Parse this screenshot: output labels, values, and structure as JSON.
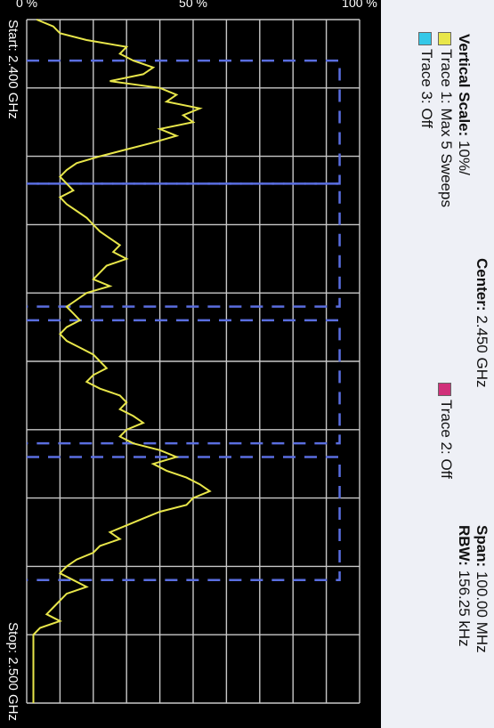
{
  "header": {
    "center_label": "Center:",
    "center_value": "2.450 GHz",
    "span_label": "Span:",
    "span_value": "100.00 MHz",
    "vscale_label": "Vertical Scale:",
    "vscale_value": "10%/",
    "rbw_label": "RBW:",
    "rbw_value": "156.25 kHz",
    "trace1_label": "Trace 1: Max 5 Sweeps",
    "trace2_label": "Trace 2: Off",
    "trace3_label": "Trace 3: Off"
  },
  "colors": {
    "trace1": "#e8e64a",
    "trace3": "#34c8e8",
    "trace2": "#d0307a",
    "grid": "#c8c8c8",
    "blue_dash": "#5a6ee0"
  },
  "chart_data": {
    "type": "line",
    "xlim": [
      2400,
      2500
    ],
    "ylim": [
      0,
      100
    ],
    "y_ticks": [
      "0 %",
      "50 %",
      "100 %"
    ],
    "x_start_label": "Start: 2.400 GHz",
    "x_stop_label": "Stop: 2.500 GHz",
    "grid": true,
    "series": [
      {
        "name": "Trace 1: Max 5 Sweeps",
        "x": [
          2400,
          2401,
          2402,
          2403,
          2404,
          2405,
          2406,
          2407,
          2408,
          2409,
          2410,
          2411,
          2412,
          2413,
          2414,
          2415,
          2416,
          2417,
          2418,
          2419,
          2420,
          2421,
          2422,
          2423,
          2424,
          2425,
          2426,
          2427,
          2428,
          2429,
          2430,
          2431,
          2432,
          2433,
          2434,
          2435,
          2436,
          2437,
          2438,
          2439,
          2440,
          2441,
          2442,
          2443,
          2444,
          2445,
          2446,
          2447,
          2448,
          2449,
          2450,
          2451,
          2452,
          2453,
          2454,
          2455,
          2456,
          2457,
          2458,
          2459,
          2460,
          2461,
          2462,
          2463,
          2464,
          2465,
          2466,
          2467,
          2468,
          2469,
          2470,
          2471,
          2472,
          2473,
          2474,
          2475,
          2476,
          2477,
          2478,
          2479,
          2480,
          2481,
          2482,
          2483,
          2484,
          2485,
          2486,
          2487,
          2488,
          2489,
          2490,
          2491,
          2492,
          2493,
          2494,
          2495,
          2496,
          2497,
          2498,
          2499,
          2500
        ],
        "values": [
          3,
          8,
          10,
          18,
          30,
          28,
          32,
          38,
          35,
          25,
          40,
          45,
          42,
          52,
          47,
          50,
          40,
          45,
          38,
          30,
          22,
          15,
          12,
          10,
          12,
          14,
          10,
          12,
          15,
          18,
          20,
          22,
          25,
          28,
          26,
          30,
          24,
          22,
          20,
          25,
          18,
          15,
          12,
          14,
          16,
          12,
          10,
          12,
          16,
          20,
          22,
          24,
          20,
          18,
          22,
          28,
          30,
          28,
          32,
          35,
          30,
          28,
          32,
          40,
          45,
          38,
          42,
          48,
          52,
          55,
          50,
          48,
          40,
          35,
          30,
          25,
          28,
          22,
          20,
          15,
          12,
          10,
          14,
          18,
          12,
          10,
          8,
          6,
          10,
          4,
          2,
          2,
          2,
          2,
          2,
          2,
          2,
          2,
          2,
          2,
          2
        ]
      }
    ]
  }
}
